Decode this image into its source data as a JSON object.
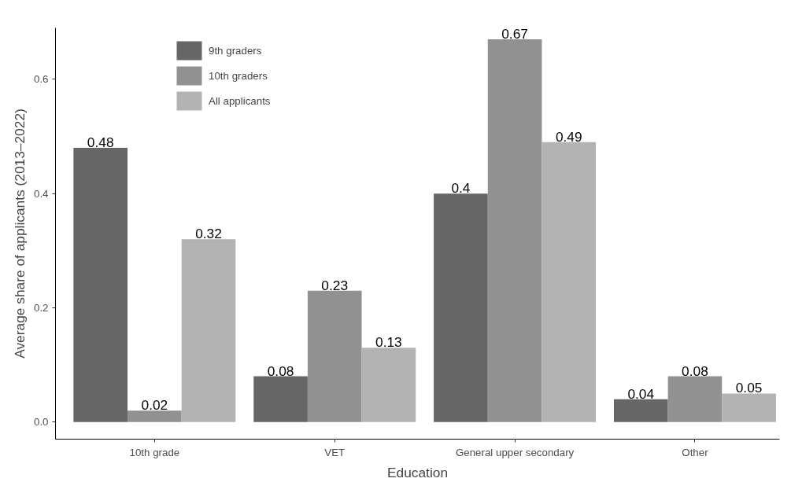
{
  "chart_data": {
    "type": "bar",
    "xlabel": "Education",
    "ylabel": "Average share of applicants (2013–2022)",
    "categories": [
      "10th grade",
      "VET",
      "General upper secondary",
      "Other"
    ],
    "series": [
      {
        "name": "9th graders",
        "color": "#666666",
        "values": [
          0.48,
          0.08,
          0.4,
          0.04
        ]
      },
      {
        "name": "10th graders",
        "color": "#919191",
        "values": [
          0.02,
          0.23,
          0.67,
          0.08
        ]
      },
      {
        "name": "All applicants",
        "color": "#b3b3b3",
        "values": [
          0.32,
          0.13,
          0.49,
          0.05
        ]
      }
    ],
    "ylim": [
      -0.03,
      0.69
    ],
    "yticks": [
      {
        "value": 0,
        "label": "0.0"
      },
      {
        "value": 0.2,
        "label": "0.2"
      },
      {
        "value": 0.4,
        "label": "0.4"
      },
      {
        "value": 0.6,
        "label": "0.6"
      }
    ],
    "grid": false,
    "legend": "top left",
    "data_labels": true
  }
}
